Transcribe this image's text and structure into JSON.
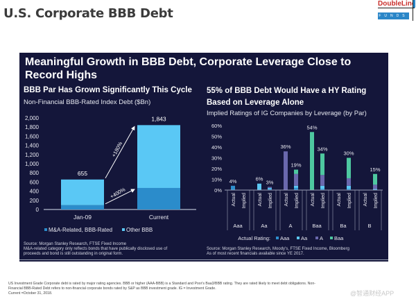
{
  "page": {
    "title": "U.S. Corporate BBB Debt",
    "logo": {
      "top": "DoubleLine",
      "bottom": "FUNDS"
    },
    "headline": "Meaningful Growth in BBB Debt, Corporate Leverage Close to Record Highs",
    "footnote": [
      "US Investment Grade Corporate debt is rated by major rating agencies. BBB or higher (AAA-BBB) is a Standard and Poor's Baa3/BBB rating. They are rated likely to meet debt obligations. Non-",
      "Financial BBB-Rated Debt refers to non-financial corporate bonds rated by S&P as BBB investment grade. IG = Investment Grade.",
      "Current =October 31, 2018."
    ],
    "watermark": "@智通财经APP"
  },
  "left": {
    "title": "BBB Par Has Grown Significantly This Cycle",
    "caption": "Non-Financial BBB-Rated Index Debt ($Bn)",
    "source": [
      "Source: Morgan Stanley Research, FTSE Fixed Income",
      "M&A-related category only reflects bonds that have publically disclosed use of",
      "proceeds and bond is still outstanding in original form."
    ]
  },
  "right": {
    "title_line1": "55% of BBB Debt Would Have a HY Rating",
    "title_line2": "Based on Leverage Alone",
    "caption": "Implied Ratings of IG Companies by Leverage (by Par)",
    "source": [
      "Source: Morgan Stanley Research, Moody's, FTSE Fixed Income, Bloomberg",
      "As of most recent financials available since YE 2017."
    ]
  },
  "chart_data": [
    {
      "type": "bar",
      "stacked": true,
      "title": "BBB Par Has Grown Significantly This Cycle",
      "ylabel": "Non-Financial BBB-Rated Index Debt ($Bn)",
      "categories": [
        "Jan-09",
        "Current"
      ],
      "series": [
        {
          "name": "M&A-Related, BBB-Rated",
          "values": [
            94,
            470
          ],
          "color": "#2b8ccb"
        },
        {
          "name": "Other BBB",
          "values": [
            561,
            1373
          ],
          "color": "#5ac8f5"
        }
      ],
      "totals": [
        "655",
        "1,843"
      ],
      "ylim": [
        0,
        2000
      ],
      "yticks": [
        "0",
        "200",
        "400",
        "600",
        "800",
        "1,000",
        "1,200",
        "1,400",
        "1,600",
        "1,800",
        "2,000"
      ],
      "annotations": [
        "+180%",
        "+400%"
      ],
      "legend": "bottom"
    },
    {
      "type": "bar",
      "stacked": true,
      "title": "55% of BBB Debt Would Have a HY Rating Based on Leverage Alone",
      "ylabel": "Implied Ratings of IG Companies by Leverage (by Par)",
      "groups": [
        "Aaa",
        "Aa",
        "A",
        "Baa",
        "Ba",
        "B"
      ],
      "sub_categories": [
        "Actual",
        "Implied"
      ],
      "legend_title": "Actual Rating:",
      "series": [
        {
          "name": "Aaa",
          "color": "#2e8fcf",
          "actual": [
            4,
            0,
            0,
            0,
            0,
            0
          ],
          "implied": [
            0,
            1,
            2,
            1,
            1,
            0
          ]
        },
        {
          "name": "Aa",
          "color": "#5cc8f4",
          "actual": [
            0,
            6,
            0,
            0,
            0,
            0
          ],
          "implied": [
            0,
            1,
            2,
            3,
            3,
            1
          ]
        },
        {
          "name": "A",
          "color": "#6a68ad",
          "actual": [
            0,
            0,
            36,
            0,
            0,
            0
          ],
          "implied": [
            0,
            1,
            11,
            10,
            7,
            4
          ]
        },
        {
          "name": "Baa",
          "color": "#4ec8a0",
          "actual": [
            0,
            0,
            0,
            54,
            0,
            0
          ],
          "implied": [
            0,
            0,
            4,
            20,
            19,
            10
          ]
        }
      ],
      "data_labels": {
        "actual": [
          "4%",
          "6%",
          "36%",
          "54%",
          "",
          ""
        ],
        "implied": [
          "",
          "3%",
          "19%",
          "34%",
          "30%",
          "15%"
        ]
      },
      "ylim": [
        0,
        60
      ],
      "yticks": [
        "0%",
        "10%",
        "20%",
        "30%",
        "40%",
        "50%",
        "60%"
      ],
      "legend": "bottom"
    }
  ]
}
